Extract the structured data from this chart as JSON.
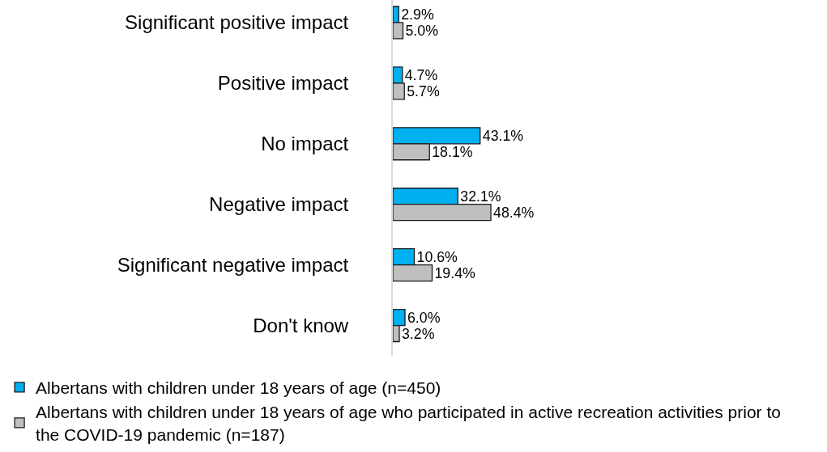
{
  "chart_data": {
    "type": "bar",
    "orientation": "horizontal",
    "categories": [
      "Significant positive impact",
      "Positive impact",
      "No impact",
      "Negative impact",
      "Significant negative impact",
      "Don't know"
    ],
    "series": [
      {
        "name": "Albertans with children under 18 years of age (n=450)",
        "color": "#00b0f0",
        "values": [
          2.9,
          4.7,
          43.1,
          32.1,
          10.6,
          6.0
        ],
        "value_labels": [
          "2.9%",
          "4.7%",
          "43.1%",
          "32.1%",
          "10.6%",
          "6.0%"
        ]
      },
      {
        "name": "Albertans with children under 18 years of age who participated in active recreation activities prior to the COVID-19 pandemic (n=187)",
        "color": "#bfbfbf",
        "values": [
          5.0,
          5.7,
          18.1,
          48.4,
          19.4,
          3.2
        ],
        "value_labels": [
          "5.0%",
          "5.7%",
          "18.1%",
          "48.4%",
          "19.4%",
          "3.2%"
        ]
      }
    ],
    "tick_labels": "y",
    "legend": "bottom left"
  }
}
